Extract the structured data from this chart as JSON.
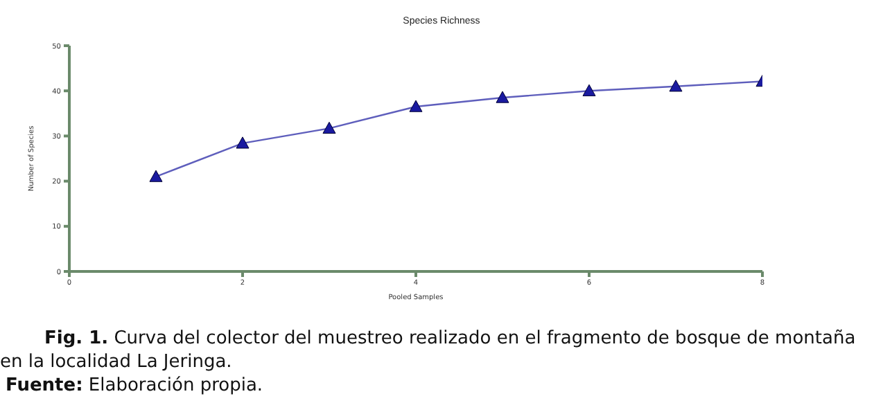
{
  "chart_data": {
    "type": "line",
    "title": "Species Richness",
    "xlabel": "Pooled Samples",
    "ylabel": "Number of Species",
    "x": [
      1,
      2,
      3,
      4,
      5,
      6,
      7,
      8
    ],
    "series": [
      {
        "color": "#1a1aa0",
        "values": [
          21.0,
          28.4,
          31.7,
          36.5,
          38.5,
          40.0,
          41.0,
          42.1
        ]
      }
    ],
    "xlim": [
      0,
      8
    ],
    "xticks": [
      0,
      2,
      4,
      6,
      8
    ],
    "ylim": [
      0,
      50
    ],
    "yticks": [
      0,
      10,
      20,
      30,
      40,
      50
    ],
    "grid": false,
    "legend": false,
    "marker": "triangle",
    "line_style": "solid",
    "annotations": [
      "Fig. 1. Curva del colector del muestreo realizado en el fragmento de bosque de montaña en la localidad La Jeringa.",
      "Fuente: Elaboración propia."
    ]
  }
}
